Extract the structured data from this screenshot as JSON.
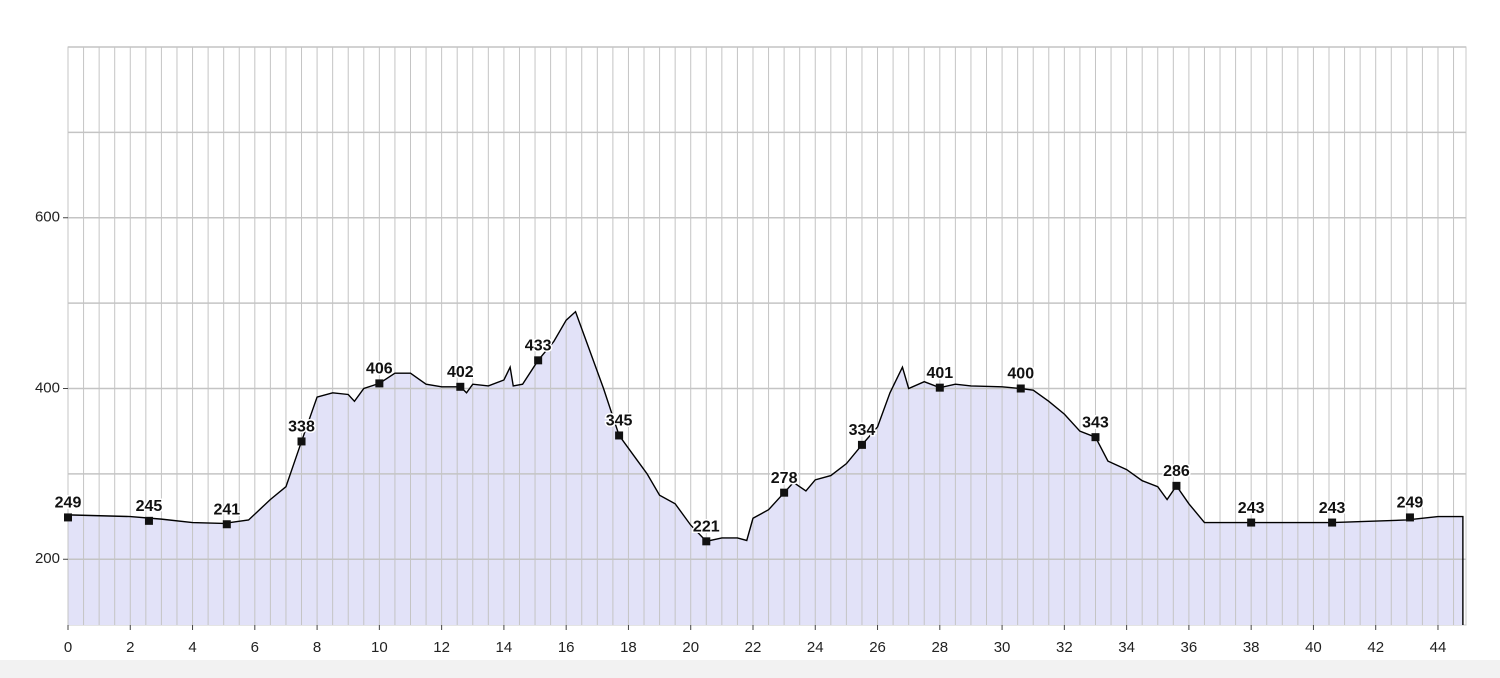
{
  "chart_data": {
    "type": "area",
    "xlim": [
      0,
      44.9
    ],
    "xticks": [
      0,
      2,
      4,
      6,
      8,
      10,
      12,
      14,
      16,
      18,
      20,
      22,
      24,
      26,
      28,
      30,
      32,
      34,
      36,
      38,
      40,
      42,
      44
    ],
    "ylim": [
      123,
      800
    ],
    "yticks": [
      200,
      400,
      600
    ],
    "grid": true,
    "xgrid_step": 0.5,
    "ygrid_step": 100,
    "series": [
      {
        "color": "#000000",
        "fill": "#e2e2f8",
        "x": [
          0,
          2,
          3,
          4,
          5,
          5.8,
          6.5,
          7,
          7.5,
          8,
          8.5,
          9,
          9.2,
          9.5,
          10,
          10.5,
          11,
          11.5,
          12,
          12.6,
          12.8,
          13,
          13.5,
          14,
          14.2,
          14.3,
          14.6,
          15.1,
          15.6,
          16,
          16.3,
          16.6,
          17.2,
          17.7,
          18.2,
          18.6,
          19,
          19.5,
          20,
          20.5,
          21,
          21.5,
          21.8,
          22,
          22.5,
          23,
          23.3,
          23.7,
          24,
          24.5,
          25,
          25.5,
          26,
          26.4,
          26.8,
          27,
          27.5,
          28,
          28.5,
          29,
          30,
          30.6,
          31,
          31.5,
          32,
          32.5,
          33,
          33.4,
          34,
          34.5,
          35,
          35.3,
          35.6,
          36,
          36.5,
          38,
          40.6,
          43,
          44,
          44.8
        ],
        "values": [
          252,
          250,
          247,
          243,
          242,
          246,
          270,
          285,
          338,
          390,
          395,
          393,
          385,
          400,
          406,
          418,
          418,
          405,
          402,
          402,
          395,
          405,
          403,
          410,
          425,
          403,
          405,
          433,
          455,
          480,
          490,
          460,
          400,
          345,
          320,
          300,
          275,
          265,
          240,
          221,
          225,
          225,
          222,
          248,
          258,
          278,
          290,
          280,
          293,
          298,
          312,
          334,
          355,
          395,
          425,
          400,
          408,
          401,
          405,
          403,
          402,
          400,
          398,
          385,
          370,
          350,
          343,
          315,
          305,
          292,
          285,
          270,
          286,
          265,
          243,
          243,
          243,
          246,
          250,
          250
        ]
      }
    ],
    "markers": {
      "x": [
        0,
        2.6,
        5.1,
        7.5,
        10,
        12.6,
        15.1,
        17.7,
        20.5,
        23,
        25.5,
        28,
        30.6,
        33,
        35.6,
        38,
        40.6,
        43.1
      ],
      "values": [
        249,
        245,
        241,
        338,
        406,
        402,
        433,
        345,
        221,
        278,
        334,
        401,
        400,
        343,
        286,
        243,
        243,
        249
      ]
    }
  }
}
